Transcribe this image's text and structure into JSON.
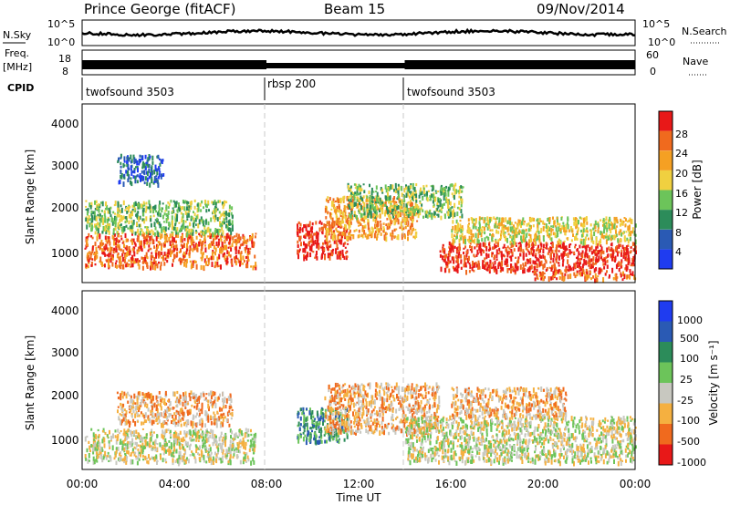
{
  "header": {
    "station": "Prince George (fitACF)",
    "beam": "Beam 15",
    "date": "09/Nov/2014"
  },
  "noise_panel": {
    "left_label": "N.Sky",
    "right_label": "N.Search",
    "left_ticks": [
      "10^5",
      "10^0"
    ],
    "right_ticks": [
      "10^5",
      "10^0"
    ]
  },
  "freq_panel": {
    "left_label_1": "Freq.",
    "left_label_2": "[MHz]",
    "left_ticks": [
      "18",
      "8"
    ],
    "right_label": "Nave",
    "right_ticks": [
      "60",
      "0"
    ]
  },
  "cpid": {
    "label": "CPID",
    "segments": [
      {
        "name": "twofsound 3503",
        "start_hour": 0
      },
      {
        "name": "rbsp 200",
        "start_hour": 8
      },
      {
        "name": "twofsound 3503",
        "start_hour": 14
      }
    ]
  },
  "x_axis": {
    "label": "Time UT",
    "ticks": [
      "00:00",
      "04:00",
      "08:00",
      "12:00",
      "16:00",
      "20:00",
      "00:00"
    ],
    "range_hours": [
      0,
      24
    ]
  },
  "power_panel": {
    "ylabel": "Slant Range [km]",
    "yticks": [
      "1000",
      "2000",
      "3000",
      "4000"
    ],
    "colorbar_label": "Power [dB]",
    "colorbar_ticks": [
      "4",
      "8",
      "12",
      "16",
      "20",
      "24",
      "28"
    ],
    "colors": [
      "#1f3cf0",
      "#2a5ab4",
      "#2c8c5a",
      "#6cc45a",
      "#f0d040",
      "#f5a023",
      "#f06a1e",
      "#e81818"
    ]
  },
  "velocity_panel": {
    "ylabel": "Slant Range [km]",
    "yticks": [
      "1000",
      "2000",
      "3000",
      "4000"
    ],
    "colorbar_label": "Velocity [m s⁻¹]",
    "colorbar_ticks": [
      "1000",
      "500",
      "100",
      "25",
      "-25",
      "-100",
      "-500",
      "-1000"
    ],
    "colors": [
      "#1f3cf0",
      "#2a5ab4",
      "#2c8c5a",
      "#6cc45a",
      "#c8c8c0",
      "#f5b040",
      "#f06a1e",
      "#e81818"
    ]
  },
  "chart_data": {
    "type": "heatmap",
    "x_range_hours": [
      0,
      24
    ],
    "y_range_km": [
      200,
      4500
    ],
    "power_blobs": [
      {
        "t0": 0.1,
        "t1": 7.5,
        "r0": 600,
        "r1": 1400,
        "level": 6
      },
      {
        "t0": 0.1,
        "t1": 6.5,
        "r0": 1400,
        "r1": 2200,
        "level": 3
      },
      {
        "t0": 1.5,
        "t1": 3.5,
        "r0": 2600,
        "r1": 3300,
        "level": 1
      },
      {
        "t0": 9.3,
        "t1": 11.5,
        "r0": 800,
        "r1": 1700,
        "level": 7
      },
      {
        "t0": 10.5,
        "t1": 14.5,
        "r0": 1300,
        "r1": 2300,
        "level": 5
      },
      {
        "t0": 11.5,
        "t1": 16.5,
        "r0": 1800,
        "r1": 2600,
        "level": 3
      },
      {
        "t0": 15.5,
        "t1": 24.0,
        "r0": 500,
        "r1": 1200,
        "level": 7
      },
      {
        "t0": 16.0,
        "t1": 24.0,
        "r0": 1200,
        "r1": 1800,
        "level": 4
      },
      {
        "t0": 19.5,
        "t1": 24.0,
        "r0": 300,
        "r1": 500,
        "level": 6
      }
    ],
    "velocity_blobs": [
      {
        "t0": 0.1,
        "t1": 7.5,
        "r0": 400,
        "r1": 1200,
        "level": 4
      },
      {
        "t0": 1.5,
        "t1": 6.5,
        "r0": 1300,
        "r1": 2100,
        "level": 5
      },
      {
        "t0": 9.3,
        "t1": 11.5,
        "r0": 900,
        "r1": 1700,
        "level": 2
      },
      {
        "t0": 10.5,
        "t1": 15.5,
        "r0": 1100,
        "r1": 2300,
        "level": 5
      },
      {
        "t0": 14.0,
        "t1": 24.0,
        "r0": 400,
        "r1": 1500,
        "level": 4
      },
      {
        "t0": 16.0,
        "t1": 21.0,
        "r0": 1500,
        "r1": 2200,
        "level": 5
      }
    ]
  }
}
